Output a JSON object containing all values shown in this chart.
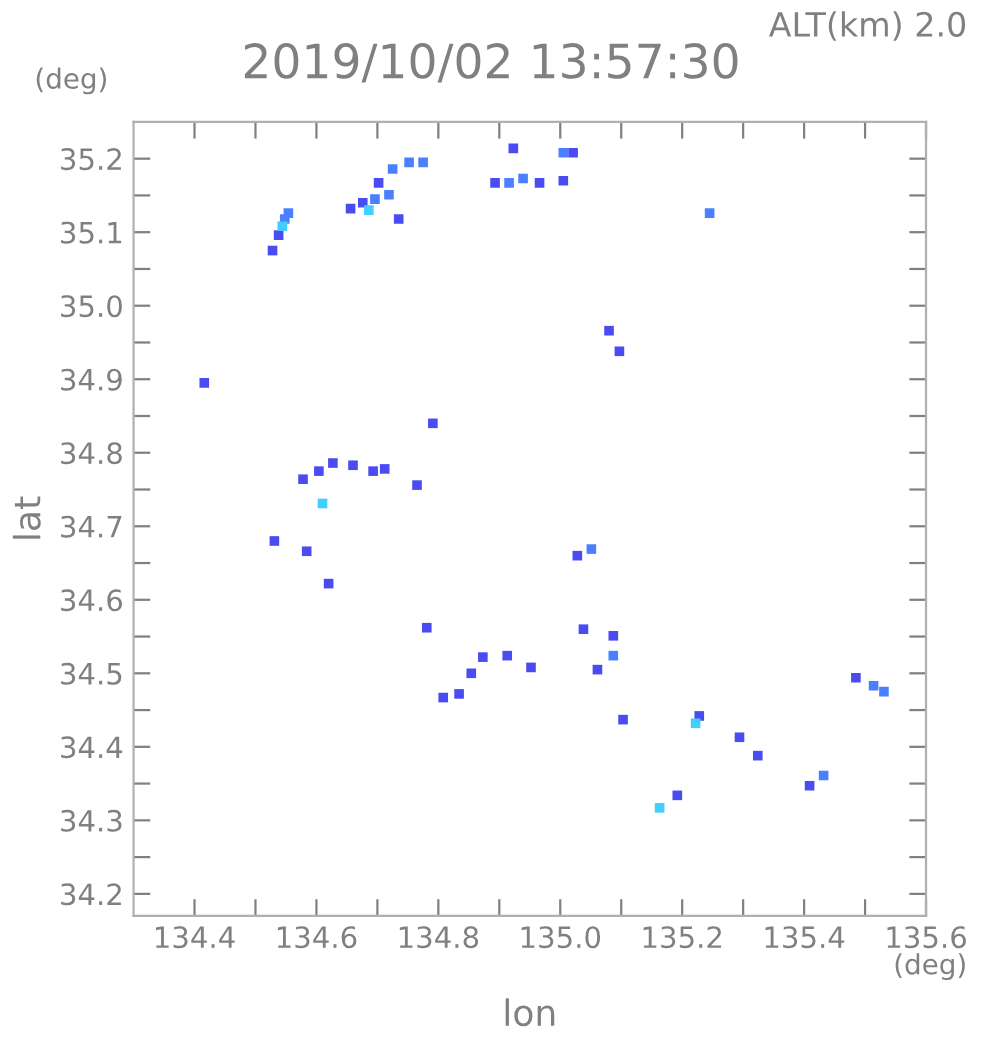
{
  "chart_data": {
    "type": "scatter",
    "title": "2019/10/02 13:57:30",
    "subtitle": "ALT(km) 2.0",
    "xlabel": "lon",
    "ylabel": "lat",
    "annotations": [
      "(deg)",
      "(deg)"
    ],
    "xlim": [
      134.3,
      135.6
    ],
    "ylim": [
      34.17,
      35.25
    ],
    "xticks": [
      134.4,
      {
        "value": 134.5,
        "label": null
      },
      134.6,
      {
        "value": 134.7,
        "label": null
      },
      134.8,
      {
        "value": 134.9,
        "label": null
      },
      {
        "value": 135.0,
        "label": "135.0"
      },
      {
        "value": 135.1,
        "label": null
      },
      135.2,
      {
        "value": 135.3,
        "label": null
      },
      135.4,
      {
        "value": 135.5,
        "label": null
      },
      135.6
    ],
    "yticks": [
      34.2,
      {
        "value": 34.25,
        "label": null
      },
      34.3,
      {
        "value": 34.35,
        "label": null
      },
      34.4,
      {
        "value": 34.45,
        "label": null
      },
      34.5,
      {
        "value": 34.55,
        "label": null
      },
      34.6,
      {
        "value": 34.65,
        "label": null
      },
      34.7,
      {
        "value": 34.75,
        "label": null
      },
      34.8,
      {
        "value": 34.85,
        "label": null
      },
      34.9,
      {
        "value": 34.95,
        "label": null
      },
      {
        "value": 35.0,
        "label": "35.0"
      },
      {
        "value": 35.05,
        "label": null
      },
      35.1,
      {
        "value": 35.15,
        "label": null
      },
      35.2
    ],
    "grid": false,
    "legend": false,
    "marker": "square",
    "series": [
      {
        "color": "#4b4bf2",
        "x": [
          134.528,
          134.538,
          134.656,
          134.676,
          134.735,
          134.702,
          134.893,
          134.923,
          135.021,
          135.005,
          134.966,
          135.08,
          135.097,
          134.416,
          134.791,
          134.578,
          134.604,
          134.627,
          134.66,
          134.693,
          134.712,
          134.765,
          134.531,
          134.584,
          134.62,
          134.781,
          134.808,
          134.834,
          134.854,
          134.873,
          134.913,
          134.952,
          135.028,
          135.038,
          135.087,
          135.061,
          135.103,
          135.228,
          135.294,
          135.324,
          135.192,
          135.409,
          135.485
        ],
        "values": [
          35.075,
          35.096,
          35.132,
          35.14,
          35.118,
          35.167,
          35.167,
          35.214,
          35.208,
          35.17,
          35.167,
          34.966,
          34.938,
          34.895,
          34.84,
          34.764,
          34.775,
          34.786,
          34.783,
          34.775,
          34.778,
          34.756,
          34.68,
          34.666,
          34.622,
          34.562,
          34.467,
          34.472,
          34.5,
          34.522,
          34.524,
          34.508,
          34.66,
          34.56,
          34.551,
          34.505,
          34.437,
          34.442,
          34.413,
          34.388,
          34.334,
          34.347,
          34.494
        ]
      },
      {
        "color": "#4a80ff",
        "x": [
          134.548,
          134.554,
          134.696,
          134.719,
          134.725,
          134.752,
          134.775,
          134.916,
          134.939,
          135.005,
          135.245,
          135.051,
          135.087,
          135.432,
          135.514,
          135.531
        ],
        "values": [
          35.118,
          35.126,
          35.145,
          35.151,
          35.186,
          35.195,
          35.195,
          35.167,
          35.173,
          35.208,
          35.126,
          34.669,
          34.524,
          34.361,
          34.483,
          34.475
        ]
      },
      {
        "color": "#40d0ff",
        "x": [
          134.544,
          134.686,
          134.61,
          135.222,
          135.163
        ],
        "values": [
          35.108,
          35.13,
          34.731,
          34.432,
          34.317
        ]
      }
    ]
  }
}
